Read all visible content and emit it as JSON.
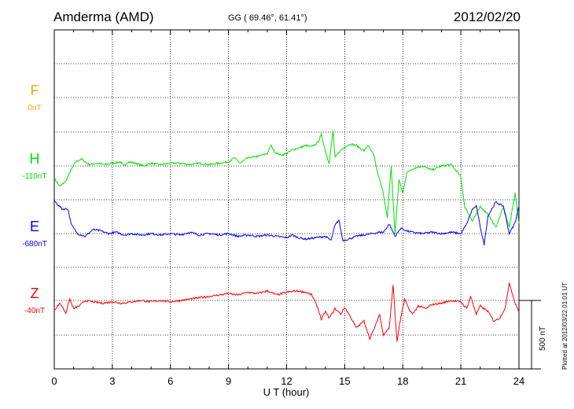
{
  "header": {
    "station": "Amderma (AMD)",
    "coords": "GG ( 69.46°,  61.41°)",
    "date": "2012/02/20"
  },
  "footer_note": "Plotted at 2012/03/22 01:01  UT",
  "chart_data": {
    "type": "line",
    "xlabel": "U T (hour)",
    "xlim": [
      0,
      24
    ],
    "xticks": [
      "0",
      "3",
      "6",
      "9",
      "12",
      "15",
      "18",
      "21",
      "24"
    ],
    "scale_bar": {
      "label": "500 nT",
      "nT": 500
    },
    "colors": {
      "F": "#ffa500",
      "H": "#00e000",
      "E": "#0000ff",
      "Z": "#ff0000"
    },
    "series": [
      {
        "name": "F",
        "baseline_label": "0nT",
        "color": "#ffa500",
        "points": []
      },
      {
        "name": "H",
        "baseline_label": "-110nT",
        "color": "#00e000",
        "points": [
          [
            0,
            -90
          ],
          [
            0.3,
            -150
          ],
          [
            0.6,
            -110
          ],
          [
            0.8,
            -50
          ],
          [
            1.1,
            30
          ],
          [
            1.4,
            50
          ],
          [
            1.8,
            10
          ],
          [
            2.2,
            20
          ],
          [
            2.6,
            10
          ],
          [
            3.0,
            20
          ],
          [
            3.4,
            30
          ],
          [
            3.6,
            0
          ],
          [
            3.8,
            30
          ],
          [
            4.2,
            20
          ],
          [
            4.6,
            0
          ],
          [
            5.0,
            20
          ],
          [
            5.5,
            10
          ],
          [
            6.0,
            20
          ],
          [
            6.5,
            20
          ],
          [
            7.0,
            10
          ],
          [
            7.5,
            20
          ],
          [
            8.0,
            10
          ],
          [
            8.5,
            20
          ],
          [
            9.0,
            30
          ],
          [
            9.3,
            60
          ],
          [
            9.6,
            20
          ],
          [
            10.0,
            60
          ],
          [
            10.5,
            70
          ],
          [
            11.0,
            90
          ],
          [
            11.2,
            150
          ],
          [
            11.4,
            100
          ],
          [
            11.7,
            80
          ],
          [
            12.0,
            90
          ],
          [
            12.3,
            120
          ],
          [
            12.6,
            130
          ],
          [
            13.0,
            150
          ],
          [
            13.3,
            140
          ],
          [
            13.6,
            170
          ],
          [
            13.8,
            230
          ],
          [
            14.0,
            110
          ],
          [
            14.2,
            20
          ],
          [
            14.4,
            260
          ],
          [
            14.5,
            60
          ],
          [
            14.7,
            100
          ],
          [
            15.0,
            140
          ],
          [
            15.3,
            160
          ],
          [
            15.6,
            150
          ],
          [
            16.0,
            110
          ],
          [
            16.2,
            150
          ],
          [
            16.5,
            80
          ],
          [
            16.7,
            -50
          ],
          [
            17.0,
            -200
          ],
          [
            17.2,
            -380
          ],
          [
            17.4,
            0
          ],
          [
            17.6,
            -500
          ],
          [
            17.8,
            -100
          ],
          [
            18.0,
            -200
          ],
          [
            18.2,
            -50
          ],
          [
            18.5,
            -20
          ],
          [
            19.0,
            0
          ],
          [
            19.5,
            -30
          ],
          [
            20.0,
            0
          ],
          [
            20.5,
            10
          ],
          [
            20.8,
            -40
          ],
          [
            21.0,
            -80
          ],
          [
            21.2,
            -300
          ],
          [
            21.6,
            -400
          ],
          [
            22.0,
            -300
          ],
          [
            22.4,
            -350
          ],
          [
            22.8,
            -450
          ],
          [
            23.2,
            -300
          ],
          [
            23.5,
            -450
          ],
          [
            23.8,
            -200
          ],
          [
            24.0,
            -420
          ]
        ]
      },
      {
        "name": "E",
        "baseline_label": "-680nT",
        "color": "#0000ff",
        "points": [
          [
            0,
            240
          ],
          [
            0.4,
            180
          ],
          [
            0.7,
            180
          ],
          [
            0.9,
            60
          ],
          [
            1.2,
            0
          ],
          [
            1.6,
            -20
          ],
          [
            2.0,
            30
          ],
          [
            2.4,
            20
          ],
          [
            2.8,
            0
          ],
          [
            3.2,
            10
          ],
          [
            3.6,
            -10
          ],
          [
            4.0,
            0
          ],
          [
            4.5,
            -10
          ],
          [
            5.0,
            0
          ],
          [
            5.5,
            -10
          ],
          [
            6.0,
            0
          ],
          [
            6.5,
            -10
          ],
          [
            7.0,
            10
          ],
          [
            7.5,
            -10
          ],
          [
            8.0,
            0
          ],
          [
            8.5,
            -10
          ],
          [
            9.0,
            0
          ],
          [
            9.5,
            -20
          ],
          [
            10.0,
            -10
          ],
          [
            10.5,
            -20
          ],
          [
            11.0,
            -10
          ],
          [
            11.5,
            -20
          ],
          [
            12.0,
            -30
          ],
          [
            12.3,
            -10
          ],
          [
            12.6,
            -30
          ],
          [
            13.0,
            -40
          ],
          [
            13.5,
            -30
          ],
          [
            14.0,
            -20
          ],
          [
            14.3,
            -50
          ],
          [
            14.5,
            60
          ],
          [
            14.7,
            100
          ],
          [
            14.9,
            -50
          ],
          [
            15.2,
            -40
          ],
          [
            15.6,
            -20
          ],
          [
            16.0,
            -10
          ],
          [
            16.4,
            0
          ],
          [
            16.8,
            10
          ],
          [
            17.0,
            10
          ],
          [
            17.3,
            70
          ],
          [
            17.6,
            -20
          ],
          [
            17.9,
            40
          ],
          [
            18.2,
            20
          ],
          [
            18.5,
            10
          ],
          [
            19.0,
            0
          ],
          [
            19.5,
            10
          ],
          [
            20.0,
            0
          ],
          [
            20.5,
            10
          ],
          [
            21.0,
            0
          ],
          [
            21.3,
            70
          ],
          [
            21.6,
            180
          ],
          [
            21.8,
            200
          ],
          [
            22.0,
            50
          ],
          [
            22.2,
            -80
          ],
          [
            22.4,
            130
          ],
          [
            22.8,
            230
          ],
          [
            23.2,
            200
          ],
          [
            23.5,
            0
          ],
          [
            23.8,
            80
          ],
          [
            24.0,
            200
          ]
        ]
      },
      {
        "name": "Z",
        "baseline_label": "-40nT",
        "color": "#ff0000",
        "points": [
          [
            0,
            -70
          ],
          [
            0.3,
            -20
          ],
          [
            0.6,
            -90
          ],
          [
            0.8,
            10
          ],
          [
            1.0,
            -60
          ],
          [
            1.3,
            -40
          ],
          [
            1.6,
            0
          ],
          [
            2.0,
            -10
          ],
          [
            2.5,
            -20
          ],
          [
            3.0,
            -10
          ],
          [
            3.5,
            -20
          ],
          [
            4.0,
            -10
          ],
          [
            4.5,
            0
          ],
          [
            5.0,
            -10
          ],
          [
            5.5,
            0
          ],
          [
            6.0,
            -10
          ],
          [
            6.5,
            0
          ],
          [
            7.0,
            10
          ],
          [
            7.5,
            20
          ],
          [
            8.0,
            30
          ],
          [
            8.5,
            40
          ],
          [
            9.0,
            50
          ],
          [
            9.5,
            40
          ],
          [
            10.0,
            60
          ],
          [
            10.5,
            50
          ],
          [
            11.0,
            70
          ],
          [
            11.5,
            40
          ],
          [
            12.0,
            60
          ],
          [
            12.5,
            70
          ],
          [
            13.0,
            60
          ],
          [
            13.3,
            40
          ],
          [
            13.6,
            -50
          ],
          [
            13.8,
            -140
          ],
          [
            14.0,
            -80
          ],
          [
            14.2,
            -130
          ],
          [
            14.5,
            -60
          ],
          [
            14.8,
            -100
          ],
          [
            15.0,
            -50
          ],
          [
            15.3,
            -120
          ],
          [
            15.6,
            -200
          ],
          [
            16.0,
            -150
          ],
          [
            16.3,
            -280
          ],
          [
            16.6,
            -180
          ],
          [
            16.8,
            -100
          ],
          [
            17.0,
            -250
          ],
          [
            17.3,
            -200
          ],
          [
            17.5,
            110
          ],
          [
            17.7,
            -300
          ],
          [
            17.9,
            -120
          ],
          [
            18.1,
            10
          ],
          [
            18.3,
            -60
          ],
          [
            18.5,
            -100
          ],
          [
            18.8,
            -40
          ],
          [
            19.2,
            -60
          ],
          [
            19.5,
            -30
          ],
          [
            20.0,
            -20
          ],
          [
            20.5,
            0
          ],
          [
            21.0,
            -10
          ],
          [
            21.3,
            -60
          ],
          [
            21.5,
            30
          ],
          [
            21.8,
            -100
          ],
          [
            22.0,
            -40
          ],
          [
            22.4,
            -80
          ],
          [
            22.7,
            -150
          ],
          [
            23.0,
            -130
          ],
          [
            23.3,
            -50
          ],
          [
            23.5,
            130
          ],
          [
            23.8,
            -20
          ],
          [
            24.0,
            -80
          ]
        ]
      }
    ]
  }
}
